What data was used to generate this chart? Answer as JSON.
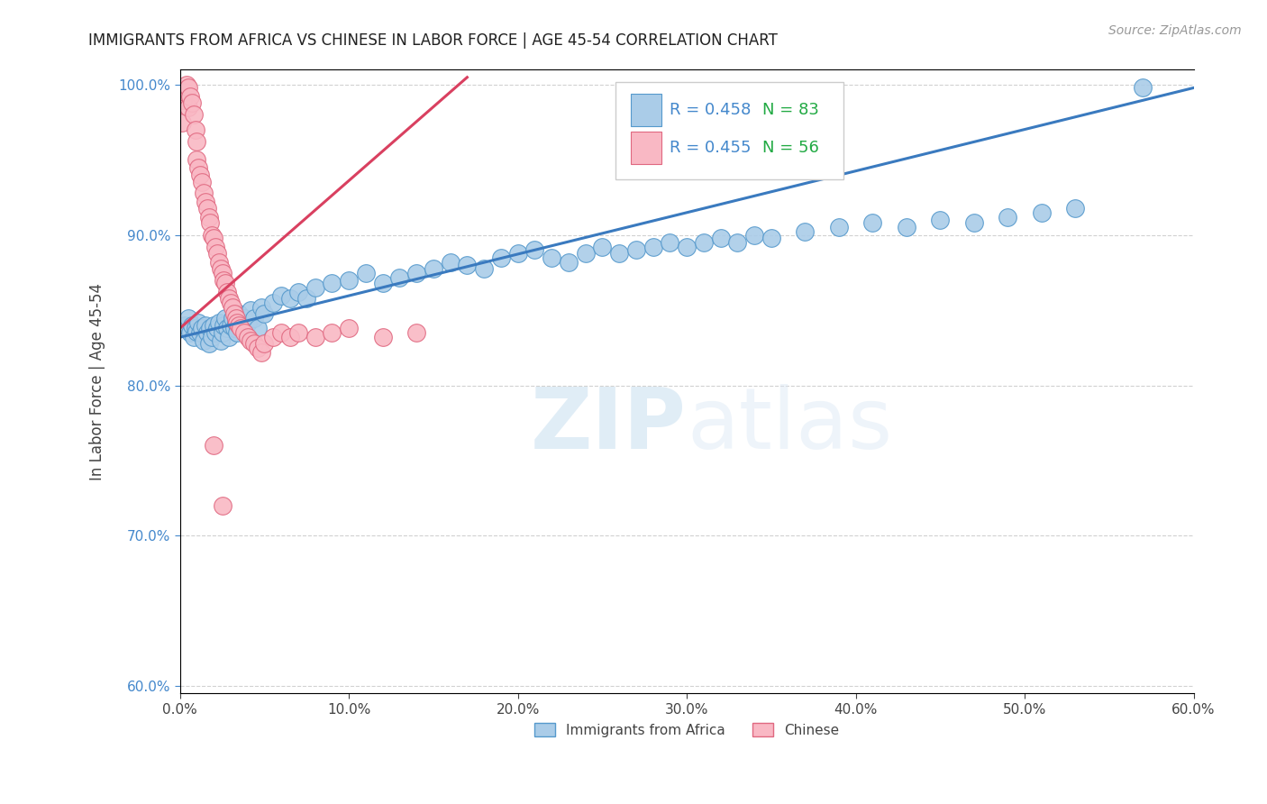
{
  "title": "IMMIGRANTS FROM AFRICA VS CHINESE IN LABOR FORCE | AGE 45-54 CORRELATION CHART",
  "source_text": "Source: ZipAtlas.com",
  "ylabel": "In Labor Force | Age 45-54",
  "xlim": [
    0.0,
    0.6
  ],
  "ylim": [
    0.595,
    1.01
  ],
  "xticks": [
    0.0,
    0.1,
    0.2,
    0.3,
    0.4,
    0.5,
    0.6
  ],
  "yticks": [
    0.6,
    0.7,
    0.8,
    0.9,
    1.0
  ],
  "xtick_labels": [
    "0.0%",
    "10.0%",
    "20.0%",
    "30.0%",
    "40.0%",
    "50.0%",
    "60.0%"
  ],
  "ytick_labels": [
    "60.0%",
    "70.0%",
    "80.0%",
    "90.0%",
    "100.0%"
  ],
  "blue_color": "#aacce8",
  "blue_edge_color": "#5599cc",
  "pink_color": "#f9b8c4",
  "pink_edge_color": "#e06880",
  "trend_blue": "#3a7abf",
  "trend_pink": "#d94060",
  "legend_R_blue": "R = 0.458",
  "legend_N_blue": "N = 83",
  "legend_R_pink": "R = 0.455",
  "legend_N_pink": "N = 56",
  "legend_label_blue": "Immigrants from Africa",
  "legend_label_pink": "Chinese",
  "watermark_zip": "ZIP",
  "watermark_atlas": "atlas",
  "blue_x": [
    0.003,
    0.005,
    0.006,
    0.007,
    0.008,
    0.009,
    0.01,
    0.011,
    0.012,
    0.013,
    0.014,
    0.015,
    0.016,
    0.017,
    0.018,
    0.019,
    0.02,
    0.021,
    0.022,
    0.023,
    0.024,
    0.025,
    0.026,
    0.027,
    0.028,
    0.029,
    0.03,
    0.031,
    0.032,
    0.033,
    0.034,
    0.035,
    0.036,
    0.038,
    0.04,
    0.042,
    0.044,
    0.046,
    0.048,
    0.05,
    0.055,
    0.06,
    0.065,
    0.07,
    0.075,
    0.08,
    0.09,
    0.1,
    0.11,
    0.12,
    0.13,
    0.14,
    0.15,
    0.16,
    0.17,
    0.18,
    0.19,
    0.2,
    0.21,
    0.22,
    0.23,
    0.24,
    0.25,
    0.26,
    0.27,
    0.28,
    0.29,
    0.3,
    0.31,
    0.32,
    0.33,
    0.34,
    0.35,
    0.37,
    0.39,
    0.41,
    0.43,
    0.45,
    0.47,
    0.49,
    0.51,
    0.53,
    0.57
  ],
  "blue_y": [
    0.84,
    0.845,
    0.835,
    0.84,
    0.832,
    0.838,
    0.836,
    0.842,
    0.835,
    0.838,
    0.83,
    0.84,
    0.835,
    0.828,
    0.838,
    0.832,
    0.84,
    0.835,
    0.838,
    0.842,
    0.83,
    0.835,
    0.84,
    0.845,
    0.838,
    0.832,
    0.84,
    0.845,
    0.838,
    0.842,
    0.835,
    0.848,
    0.84,
    0.845,
    0.842,
    0.85,
    0.845,
    0.838,
    0.852,
    0.848,
    0.855,
    0.86,
    0.858,
    0.862,
    0.858,
    0.865,
    0.868,
    0.87,
    0.875,
    0.868,
    0.872,
    0.875,
    0.878,
    0.882,
    0.88,
    0.878,
    0.885,
    0.888,
    0.89,
    0.885,
    0.882,
    0.888,
    0.892,
    0.888,
    0.89,
    0.892,
    0.895,
    0.892,
    0.895,
    0.898,
    0.895,
    0.9,
    0.898,
    0.902,
    0.905,
    0.908,
    0.905,
    0.91,
    0.908,
    0.912,
    0.915,
    0.918,
    0.998
  ],
  "pink_x": [
    0.001,
    0.002,
    0.003,
    0.004,
    0.005,
    0.005,
    0.006,
    0.007,
    0.008,
    0.009,
    0.01,
    0.01,
    0.011,
    0.012,
    0.013,
    0.014,
    0.015,
    0.016,
    0.017,
    0.018,
    0.019,
    0.02,
    0.021,
    0.022,
    0.023,
    0.024,
    0.025,
    0.026,
    0.027,
    0.028,
    0.029,
    0.03,
    0.031,
    0.032,
    0.033,
    0.034,
    0.035,
    0.036,
    0.038,
    0.04,
    0.042,
    0.044,
    0.046,
    0.048,
    0.05,
    0.055,
    0.06,
    0.065,
    0.07,
    0.08,
    0.09,
    0.1,
    0.12,
    0.14,
    0.02,
    0.025
  ],
  "pink_y": [
    0.975,
    0.99,
    0.995,
    1.0,
    0.998,
    0.985,
    0.992,
    0.988,
    0.98,
    0.97,
    0.962,
    0.95,
    0.945,
    0.94,
    0.935,
    0.928,
    0.922,
    0.918,
    0.912,
    0.908,
    0.9,
    0.898,
    0.892,
    0.888,
    0.882,
    0.878,
    0.875,
    0.87,
    0.868,
    0.862,
    0.858,
    0.855,
    0.852,
    0.848,
    0.845,
    0.842,
    0.84,
    0.838,
    0.835,
    0.832,
    0.83,
    0.828,
    0.825,
    0.822,
    0.828,
    0.832,
    0.835,
    0.832,
    0.835,
    0.832,
    0.835,
    0.838,
    0.832,
    0.835,
    0.76,
    0.72
  ],
  "blue_trend_x": [
    0.0,
    0.6
  ],
  "blue_trend_y": [
    0.832,
    0.998
  ],
  "pink_trend_x": [
    0.0,
    0.17
  ],
  "pink_trend_y": [
    0.838,
    1.005
  ]
}
